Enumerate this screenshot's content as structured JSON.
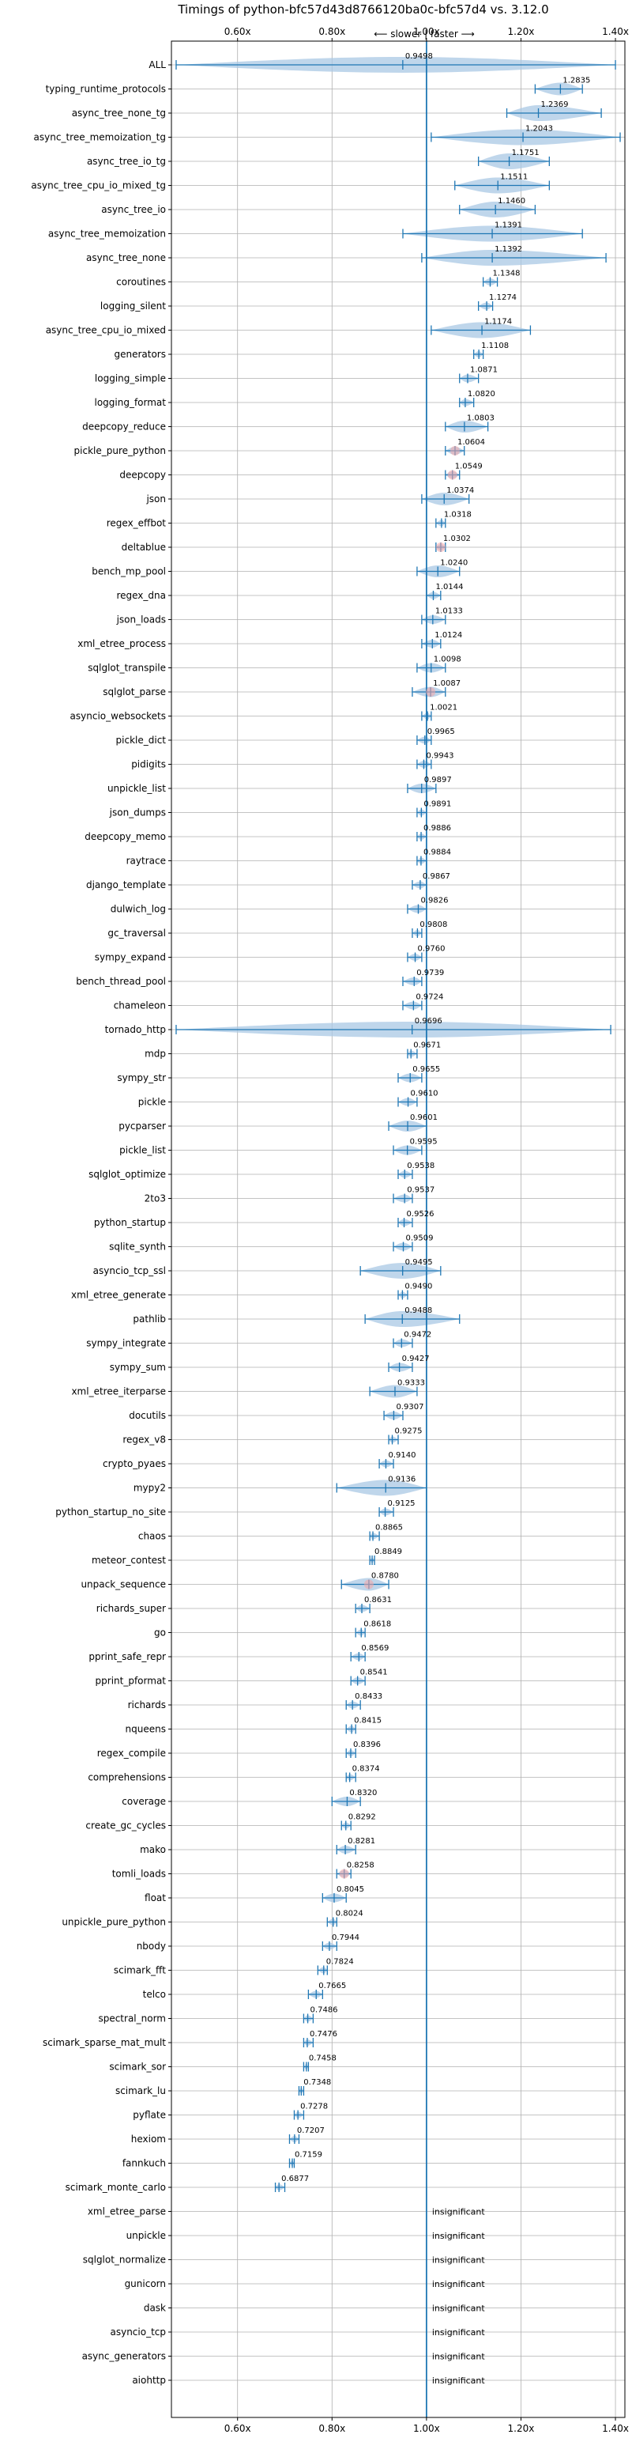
{
  "chart_data": {
    "type": "violin",
    "title": "Timings of python-bfc57d43d8766120ba0c-bfc57d4 vs. 3.12.0",
    "top_annotation": "⟵ slower | faster ⟶",
    "xlim": [
      0.46,
      1.42
    ],
    "xticks": [
      0.6,
      0.8,
      1.0,
      1.2,
      1.4
    ],
    "xtick_labels": [
      "0.60x",
      "0.80x",
      "1.00x",
      "1.20x",
      "1.40x"
    ],
    "reference_line_x": 1.0,
    "grid": true,
    "insignificant_label": "insignificant",
    "benchmarks": [
      {
        "name": "ALL",
        "value": 0.9498,
        "value_label": "0.9498",
        "min": 0.47,
        "max": 1.4
      },
      {
        "name": "typing_runtime_protocols",
        "value": 1.2835,
        "value_label": "1.2835",
        "min": 1.23,
        "max": 1.33
      },
      {
        "name": "async_tree_none_tg",
        "value": 1.2369,
        "value_label": "1.2369",
        "min": 1.17,
        "max": 1.37
      },
      {
        "name": "async_tree_memoization_tg",
        "value": 1.2043,
        "value_label": "1.2043",
        "min": 1.01,
        "max": 1.41
      },
      {
        "name": "async_tree_io_tg",
        "value": 1.1751,
        "value_label": "1.1751",
        "min": 1.11,
        "max": 1.26
      },
      {
        "name": "async_tree_cpu_io_mixed_tg",
        "value": 1.1511,
        "value_label": "1.1511",
        "min": 1.06,
        "max": 1.26
      },
      {
        "name": "async_tree_io",
        "value": 1.146,
        "value_label": "1.1460",
        "min": 1.07,
        "max": 1.23
      },
      {
        "name": "async_tree_memoization",
        "value": 1.1391,
        "value_label": "1.1391",
        "min": 0.95,
        "max": 1.33
      },
      {
        "name": "async_tree_none",
        "value": 1.1392,
        "value_label": "1.1392",
        "min": 0.99,
        "max": 1.38
      },
      {
        "name": "coroutines",
        "value": 1.1348,
        "value_label": "1.1348",
        "min": 1.12,
        "max": 1.15
      },
      {
        "name": "logging_silent",
        "value": 1.1274,
        "value_label": "1.1274",
        "min": 1.11,
        "max": 1.14
      },
      {
        "name": "async_tree_cpu_io_mixed",
        "value": 1.1174,
        "value_label": "1.1174",
        "min": 1.01,
        "max": 1.22
      },
      {
        "name": "generators",
        "value": 1.1108,
        "value_label": "1.1108",
        "min": 1.1,
        "max": 1.12
      },
      {
        "name": "logging_simple",
        "value": 1.0871,
        "value_label": "1.0871",
        "min": 1.07,
        "max": 1.11
      },
      {
        "name": "logging_format",
        "value": 1.082,
        "value_label": "1.0820",
        "min": 1.07,
        "max": 1.1
      },
      {
        "name": "deepcopy_reduce",
        "value": 1.0803,
        "value_label": "1.0803",
        "min": 1.04,
        "max": 1.13
      },
      {
        "name": "pickle_pure_python",
        "value": 1.0604,
        "value_label": "1.0604",
        "min": 1.04,
        "max": 1.08
      },
      {
        "name": "deepcopy",
        "value": 1.0549,
        "value_label": "1.0549",
        "min": 1.04,
        "max": 1.07
      },
      {
        "name": "json",
        "value": 1.0374,
        "value_label": "1.0374",
        "min": 0.99,
        "max": 1.09
      },
      {
        "name": "regex_effbot",
        "value": 1.0318,
        "value_label": "1.0318",
        "min": 1.02,
        "max": 1.04
      },
      {
        "name": "deltablue",
        "value": 1.0302,
        "value_label": "1.0302",
        "min": 1.02,
        "max": 1.04
      },
      {
        "name": "bench_mp_pool",
        "value": 1.024,
        "value_label": "1.0240",
        "min": 0.98,
        "max": 1.07
      },
      {
        "name": "regex_dna",
        "value": 1.0144,
        "value_label": "1.0144",
        "min": 1.0,
        "max": 1.03
      },
      {
        "name": "json_loads",
        "value": 1.0133,
        "value_label": "1.0133",
        "min": 0.99,
        "max": 1.04
      },
      {
        "name": "xml_etree_process",
        "value": 1.0124,
        "value_label": "1.0124",
        "min": 0.99,
        "max": 1.03
      },
      {
        "name": "sqlglot_transpile",
        "value": 1.0098,
        "value_label": "1.0098",
        "min": 0.98,
        "max": 1.04
      },
      {
        "name": "sqlglot_parse",
        "value": 1.0087,
        "value_label": "1.0087",
        "min": 0.97,
        "max": 1.04
      },
      {
        "name": "asyncio_websockets",
        "value": 1.0021,
        "value_label": "1.0021",
        "min": 0.99,
        "max": 1.01
      },
      {
        "name": "pickle_dict",
        "value": 0.9965,
        "value_label": "0.9965",
        "min": 0.98,
        "max": 1.01
      },
      {
        "name": "pidigits",
        "value": 0.9943,
        "value_label": "0.9943",
        "min": 0.98,
        "max": 1.01
      },
      {
        "name": "unpickle_list",
        "value": 0.9897,
        "value_label": "0.9897",
        "min": 0.96,
        "max": 1.02
      },
      {
        "name": "json_dumps",
        "value": 0.9891,
        "value_label": "0.9891",
        "min": 0.98,
        "max": 1.0
      },
      {
        "name": "deepcopy_memo",
        "value": 0.9886,
        "value_label": "0.9886",
        "min": 0.98,
        "max": 1.0
      },
      {
        "name": "raytrace",
        "value": 0.9884,
        "value_label": "0.9884",
        "min": 0.98,
        "max": 1.0
      },
      {
        "name": "django_template",
        "value": 0.9867,
        "value_label": "0.9867",
        "min": 0.97,
        "max": 1.0
      },
      {
        "name": "dulwich_log",
        "value": 0.9826,
        "value_label": "0.9826",
        "min": 0.96,
        "max": 1.0
      },
      {
        "name": "gc_traversal",
        "value": 0.9808,
        "value_label": "0.9808",
        "min": 0.97,
        "max": 0.99
      },
      {
        "name": "sympy_expand",
        "value": 0.976,
        "value_label": "0.9760",
        "min": 0.96,
        "max": 0.99
      },
      {
        "name": "bench_thread_pool",
        "value": 0.9739,
        "value_label": "0.9739",
        "min": 0.95,
        "max": 0.99
      },
      {
        "name": "chameleon",
        "value": 0.9724,
        "value_label": "0.9724",
        "min": 0.95,
        "max": 0.99
      },
      {
        "name": "tornado_http",
        "value": 0.9696,
        "value_label": "0.9696",
        "min": 0.47,
        "max": 1.39
      },
      {
        "name": "mdp",
        "value": 0.9671,
        "value_label": "0.9671",
        "min": 0.96,
        "max": 0.98
      },
      {
        "name": "sympy_str",
        "value": 0.9655,
        "value_label": "0.9655",
        "min": 0.94,
        "max": 0.99
      },
      {
        "name": "pickle",
        "value": 0.961,
        "value_label": "0.9610",
        "min": 0.94,
        "max": 0.98
      },
      {
        "name": "pycparser",
        "value": 0.9601,
        "value_label": "0.9601",
        "min": 0.92,
        "max": 1.0
      },
      {
        "name": "pickle_list",
        "value": 0.9595,
        "value_label": "0.9595",
        "min": 0.93,
        "max": 0.99
      },
      {
        "name": "sqlglot_optimize",
        "value": 0.9538,
        "value_label": "0.9538",
        "min": 0.94,
        "max": 0.97
      },
      {
        "name": "2to3",
        "value": 0.9537,
        "value_label": "0.9537",
        "min": 0.93,
        "max": 0.97
      },
      {
        "name": "python_startup",
        "value": 0.9526,
        "value_label": "0.9526",
        "min": 0.94,
        "max": 0.97
      },
      {
        "name": "sqlite_synth",
        "value": 0.9509,
        "value_label": "0.9509",
        "min": 0.93,
        "max": 0.97
      },
      {
        "name": "asyncio_tcp_ssl",
        "value": 0.9495,
        "value_label": "0.9495",
        "min": 0.86,
        "max": 1.03
      },
      {
        "name": "xml_etree_generate",
        "value": 0.949,
        "value_label": "0.9490",
        "min": 0.94,
        "max": 0.96
      },
      {
        "name": "pathlib",
        "value": 0.9488,
        "value_label": "0.9488",
        "min": 0.87,
        "max": 1.07
      },
      {
        "name": "sympy_integrate",
        "value": 0.9472,
        "value_label": "0.9472",
        "min": 0.93,
        "max": 0.97
      },
      {
        "name": "sympy_sum",
        "value": 0.9427,
        "value_label": "0.9427",
        "min": 0.92,
        "max": 0.97
      },
      {
        "name": "xml_etree_iterparse",
        "value": 0.9333,
        "value_label": "0.9333",
        "min": 0.88,
        "max": 0.98
      },
      {
        "name": "docutils",
        "value": 0.9307,
        "value_label": "0.9307",
        "min": 0.91,
        "max": 0.95
      },
      {
        "name": "regex_v8",
        "value": 0.9275,
        "value_label": "0.9275",
        "min": 0.92,
        "max": 0.94
      },
      {
        "name": "crypto_pyaes",
        "value": 0.914,
        "value_label": "0.9140",
        "min": 0.9,
        "max": 0.93
      },
      {
        "name": "mypy2",
        "value": 0.9136,
        "value_label": "0.9136",
        "min": 0.81,
        "max": 1.0
      },
      {
        "name": "python_startup_no_site",
        "value": 0.9125,
        "value_label": "0.9125",
        "min": 0.9,
        "max": 0.93
      },
      {
        "name": "chaos",
        "value": 0.8865,
        "value_label": "0.8865",
        "min": 0.88,
        "max": 0.9
      },
      {
        "name": "meteor_contest",
        "value": 0.8849,
        "value_label": "0.8849",
        "min": 0.88,
        "max": 0.89
      },
      {
        "name": "unpack_sequence",
        "value": 0.878,
        "value_label": "0.8780",
        "min": 0.82,
        "max": 0.92
      },
      {
        "name": "richards_super",
        "value": 0.8631,
        "value_label": "0.8631",
        "min": 0.85,
        "max": 0.88
      },
      {
        "name": "go",
        "value": 0.8618,
        "value_label": "0.8618",
        "min": 0.85,
        "max": 0.87
      },
      {
        "name": "pprint_safe_repr",
        "value": 0.8569,
        "value_label": "0.8569",
        "min": 0.84,
        "max": 0.87
      },
      {
        "name": "pprint_pformat",
        "value": 0.8541,
        "value_label": "0.8541",
        "min": 0.84,
        "max": 0.87
      },
      {
        "name": "richards",
        "value": 0.8433,
        "value_label": "0.8433",
        "min": 0.83,
        "max": 0.86
      },
      {
        "name": "nqueens",
        "value": 0.8415,
        "value_label": "0.8415",
        "min": 0.83,
        "max": 0.85
      },
      {
        "name": "regex_compile",
        "value": 0.8396,
        "value_label": "0.8396",
        "min": 0.83,
        "max": 0.85
      },
      {
        "name": "comprehensions",
        "value": 0.8374,
        "value_label": "0.8374",
        "min": 0.83,
        "max": 0.85
      },
      {
        "name": "coverage",
        "value": 0.832,
        "value_label": "0.8320",
        "min": 0.8,
        "max": 0.86
      },
      {
        "name": "create_gc_cycles",
        "value": 0.8292,
        "value_label": "0.8292",
        "min": 0.82,
        "max": 0.84
      },
      {
        "name": "mako",
        "value": 0.8281,
        "value_label": "0.8281",
        "min": 0.81,
        "max": 0.85
      },
      {
        "name": "tomli_loads",
        "value": 0.8258,
        "value_label": "0.8258",
        "min": 0.81,
        "max": 0.84
      },
      {
        "name": "float",
        "value": 0.8045,
        "value_label": "0.8045",
        "min": 0.78,
        "max": 0.83
      },
      {
        "name": "unpickle_pure_python",
        "value": 0.8024,
        "value_label": "0.8024",
        "min": 0.79,
        "max": 0.81
      },
      {
        "name": "nbody",
        "value": 0.7944,
        "value_label": "0.7944",
        "min": 0.78,
        "max": 0.81
      },
      {
        "name": "scimark_fft",
        "value": 0.7824,
        "value_label": "0.7824",
        "min": 0.77,
        "max": 0.79
      },
      {
        "name": "telco",
        "value": 0.7665,
        "value_label": "0.7665",
        "min": 0.75,
        "max": 0.78
      },
      {
        "name": "spectral_norm",
        "value": 0.7486,
        "value_label": "0.7486",
        "min": 0.74,
        "max": 0.76
      },
      {
        "name": "scimark_sparse_mat_mult",
        "value": 0.7476,
        "value_label": "0.7476",
        "min": 0.74,
        "max": 0.76
      },
      {
        "name": "scimark_sor",
        "value": 0.7458,
        "value_label": "0.7458",
        "min": 0.74,
        "max": 0.75
      },
      {
        "name": "scimark_lu",
        "value": 0.7348,
        "value_label": "0.7348",
        "min": 0.73,
        "max": 0.74
      },
      {
        "name": "pyflate",
        "value": 0.7278,
        "value_label": "0.7278",
        "min": 0.72,
        "max": 0.74
      },
      {
        "name": "hexiom",
        "value": 0.7207,
        "value_label": "0.7207",
        "min": 0.71,
        "max": 0.73
      },
      {
        "name": "fannkuch",
        "value": 0.7159,
        "value_label": "0.7159",
        "min": 0.71,
        "max": 0.72
      },
      {
        "name": "scimark_monte_carlo",
        "value": 0.6877,
        "value_label": "0.6877",
        "min": 0.68,
        "max": 0.7
      },
      {
        "name": "xml_etree_parse",
        "value": null,
        "value_label": "insignificant"
      },
      {
        "name": "unpickle",
        "value": null,
        "value_label": "insignificant"
      },
      {
        "name": "sqlglot_normalize",
        "value": null,
        "value_label": "insignificant"
      },
      {
        "name": "gunicorn",
        "value": null,
        "value_label": "insignificant"
      },
      {
        "name": "dask",
        "value": null,
        "value_label": "insignificant"
      },
      {
        "name": "asyncio_tcp",
        "value": null,
        "value_label": "insignificant"
      },
      {
        "name": "async_generators",
        "value": null,
        "value_label": "insignificant"
      },
      {
        "name": "aiohttp",
        "value": null,
        "value_label": "insignificant"
      }
    ],
    "colors": {
      "violin": "#a9c8e4",
      "line": "#1f77b4",
      "highlight": "#f4a6a6",
      "grid": "#b0b0b0",
      "text": "#000000"
    }
  }
}
